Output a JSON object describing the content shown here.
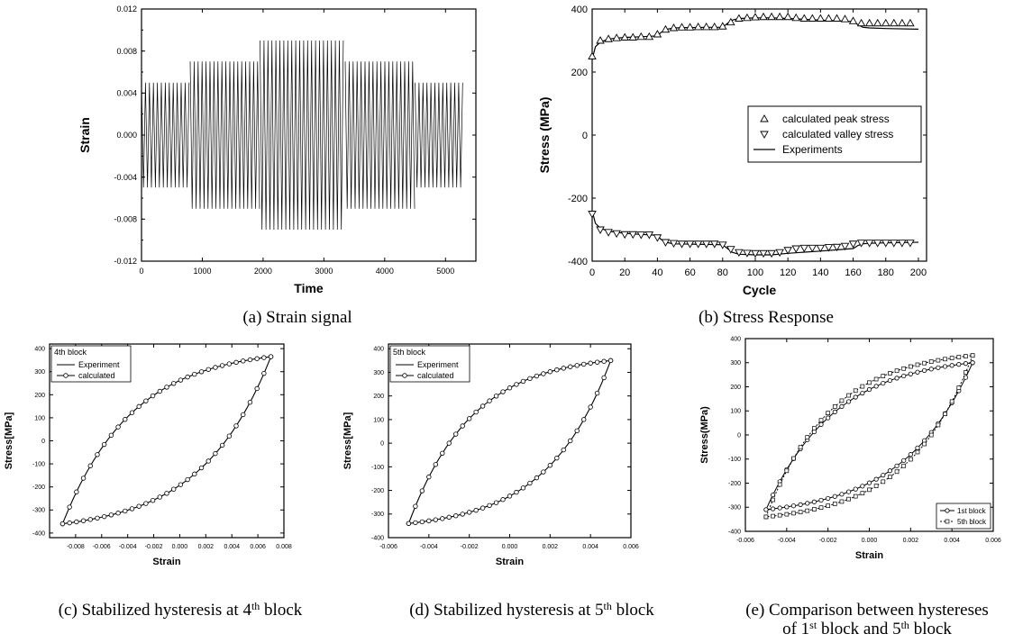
{
  "chart_data": [
    {
      "id": "a",
      "type": "line",
      "title": "",
      "caption": {
        "prefix": "(a) Strain signal"
      },
      "xlabel": "Time",
      "ylabel": "Strain",
      "xlim": [
        0,
        5500
      ],
      "ylim": [
        -0.012,
        0.012
      ],
      "xticks": [
        0,
        1000,
        2000,
        3000,
        4000,
        5000
      ],
      "xtick_labels": [
        "0",
        "1000",
        "2000",
        "3000",
        "4000",
        "5000"
      ],
      "yticks": [
        -0.012,
        -0.008,
        -0.004,
        0.0,
        0.004,
        0.008,
        0.012
      ],
      "ytick_labels": [
        "-0.012",
        "-0.008",
        "-0.004",
        "0.000",
        "0.004",
        "0.008",
        "0.012"
      ],
      "blocks": [
        {
          "start": 0,
          "end": 800,
          "amplitude": 0.005
        },
        {
          "start": 800,
          "end": 1950,
          "amplitude": 0.007
        },
        {
          "start": 1950,
          "end": 3350,
          "amplitude": 0.009
        },
        {
          "start": 3350,
          "end": 4500,
          "amplitude": 0.007
        },
        {
          "start": 4500,
          "end": 5300,
          "amplitude": 0.005
        }
      ]
    },
    {
      "id": "b",
      "type": "scatter",
      "title": "",
      "caption": {
        "prefix": "(b) Stress Response"
      },
      "xlabel": "Cycle",
      "ylabel": "Stress (MPa)",
      "xlim": [
        0,
        205
      ],
      "ylim": [
        -400,
        400
      ],
      "xticks": [
        0,
        20,
        40,
        60,
        80,
        100,
        120,
        140,
        160,
        180,
        200
      ],
      "xtick_labels": [
        "0",
        "20",
        "40",
        "60",
        "80",
        "100",
        "120",
        "140",
        "160",
        "180",
        "200"
      ],
      "yticks": [
        -400,
        -200,
        0,
        200,
        400
      ],
      "ytick_labels": [
        "-400",
        "-200",
        "0",
        "200",
        "400"
      ],
      "legend": "right",
      "series": [
        {
          "name": "calculated peak stress",
          "marker": "triangle-up",
          "x": [
            0,
            5,
            10,
            15,
            20,
            25,
            30,
            35,
            40,
            45,
            50,
            55,
            60,
            65,
            70,
            75,
            80,
            85,
            90,
            95,
            100,
            105,
            110,
            115,
            120,
            125,
            130,
            135,
            140,
            145,
            150,
            155,
            160,
            165,
            170,
            175,
            180,
            185,
            190,
            195
          ],
          "y": [
            250,
            300,
            305,
            308,
            310,
            310,
            312,
            312,
            320,
            335,
            340,
            342,
            342,
            343,
            343,
            343,
            345,
            358,
            370,
            372,
            374,
            375,
            375,
            375,
            375,
            372,
            370,
            370,
            370,
            370,
            370,
            368,
            362,
            355,
            355,
            355,
            355,
            355,
            355,
            355
          ]
        },
        {
          "name": "calculated valley stress",
          "marker": "triangle-down",
          "x": [
            0,
            5,
            10,
            15,
            20,
            25,
            30,
            35,
            40,
            45,
            50,
            55,
            60,
            65,
            70,
            75,
            80,
            85,
            90,
            95,
            100,
            105,
            110,
            115,
            120,
            125,
            130,
            135,
            140,
            145,
            150,
            155,
            160,
            165,
            170,
            175,
            180,
            185,
            190,
            195
          ],
          "y": [
            -250,
            -300,
            -308,
            -312,
            -315,
            -315,
            -316,
            -316,
            -325,
            -340,
            -343,
            -345,
            -345,
            -345,
            -345,
            -345,
            -348,
            -362,
            -372,
            -374,
            -375,
            -375,
            -375,
            -372,
            -365,
            -360,
            -358,
            -358,
            -358,
            -356,
            -355,
            -352,
            -345,
            -342,
            -342,
            -342,
            -342,
            -342,
            -342,
            -342
          ]
        },
        {
          "name": "Experiments",
          "style": "line",
          "x": [
            0,
            2,
            5,
            10,
            20,
            30,
            40,
            42,
            45,
            50,
            60,
            70,
            80,
            83,
            86,
            90,
            100,
            110,
            120,
            140,
            160,
            163,
            166,
            170,
            180,
            200
          ],
          "y": [
            240,
            280,
            295,
            305,
            310,
            312,
            315,
            325,
            335,
            340,
            341,
            342,
            342,
            355,
            365,
            370,
            372,
            372,
            370,
            365,
            360,
            350,
            342,
            340,
            338,
            336
          ]
        },
        {
          "name": "",
          "style": "line",
          "x": [
            0,
            2,
            5,
            10,
            20,
            30,
            40,
            42,
            45,
            50,
            60,
            70,
            80,
            83,
            86,
            90,
            100,
            110,
            120,
            140,
            160,
            163,
            166,
            170,
            180,
            200
          ],
          "y": [
            -240,
            -280,
            -295,
            -305,
            -312,
            -315,
            -318,
            -330,
            -340,
            -345,
            -346,
            -347,
            -348,
            -360,
            -372,
            -378,
            -380,
            -380,
            -375,
            -368,
            -360,
            -350,
            -345,
            -343,
            -342,
            -340
          ]
        }
      ]
    },
    {
      "id": "c",
      "type": "line",
      "title": "",
      "caption": {
        "prefix": "(c) Stabilized hysteresis at 4",
        "sup": "th",
        "suffix": " block"
      },
      "xlabel": "Strain",
      "ylabel": "Stress[MPa]",
      "xlim": [
        -0.01,
        0.008
      ],
      "ylim": [
        -420,
        420
      ],
      "xticks": [
        -0.008,
        -0.006,
        -0.004,
        -0.002,
        0.0,
        0.002,
        0.004,
        0.006,
        0.008
      ],
      "xtick_labels": [
        "-0.008",
        "-0.006",
        "-0.004",
        "-0.002",
        "0.000",
        "0.002",
        "0.004",
        "0.006",
        "0.008"
      ],
      "yticks": [
        -400,
        -300,
        -200,
        -100,
        0,
        100,
        200,
        300,
        400
      ],
      "ytick_labels": [
        "-400",
        "-300",
        "-200",
        "-100",
        "0",
        "100",
        "200",
        "300",
        "400"
      ],
      "legend": "top-left",
      "legend_title": "4th block",
      "loop": {
        "emin": -0.009,
        "emax": 0.007,
        "smin": -360,
        "smax": 365,
        "k": 3.0
      },
      "series": [
        {
          "name": "Experiment",
          "style": "line"
        },
        {
          "name": "calculated",
          "style": "line+circle"
        }
      ]
    },
    {
      "id": "d",
      "type": "line",
      "title": "",
      "caption": {
        "prefix": "(d) Stabilized hysteresis at 5",
        "sup": "th",
        "suffix": " block"
      },
      "xlabel": "Strain",
      "ylabel": "Stress[MPa]",
      "xlim": [
        -0.006,
        0.006
      ],
      "ylim": [
        -400,
        420
      ],
      "xticks": [
        -0.006,
        -0.004,
        -0.002,
        0.0,
        0.002,
        0.004,
        0.006
      ],
      "xtick_labels": [
        "-0.006",
        "-0.004",
        "-0.002",
        "0.000",
        "0.002",
        "0.004",
        "0.006"
      ],
      "yticks": [
        -400,
        -300,
        -200,
        -100,
        0,
        100,
        200,
        300,
        400
      ],
      "ytick_labels": [
        "-400",
        "-300",
        "-200",
        "-100",
        "0",
        "100",
        "200",
        "300",
        "400"
      ],
      "legend": "top-left",
      "legend_title": "5th block",
      "loop": {
        "emin": -0.005,
        "emax": 0.005,
        "smin": -340,
        "smax": 350,
        "k": 3.2
      },
      "series": [
        {
          "name": "Experiment",
          "style": "line"
        },
        {
          "name": "calculated",
          "style": "line+circle"
        }
      ]
    },
    {
      "id": "e",
      "type": "line",
      "title": "",
      "caption": {
        "prefix": "(e) Comparison between hystereses",
        "line2_prefix": "of 1",
        "line2_sup1": "st",
        "line2_mid": " block and 5",
        "line2_sup2": "th",
        "line2_suffix": " block"
      },
      "xlabel": "Strain",
      "ylabel": "Stress(MPa)",
      "xlim": [
        -0.006,
        0.006
      ],
      "ylim": [
        -400,
        400
      ],
      "xticks": [
        -0.006,
        -0.004,
        -0.002,
        0.0,
        0.002,
        0.004,
        0.006
      ],
      "xtick_labels": [
        "-0.006",
        "-0.004",
        "-0.002",
        "0.000",
        "0.002",
        "0.004",
        "0.006"
      ],
      "yticks": [
        -400,
        -300,
        -200,
        -100,
        0,
        100,
        200,
        300,
        400
      ],
      "ytick_labels": [
        "-400",
        "-300",
        "-200",
        "-100",
        "0",
        "100",
        "200",
        "300",
        "400"
      ],
      "legend": "bottom-right",
      "series": [
        {
          "name": "1st block",
          "style": "line+circle",
          "loop": {
            "emin": -0.005,
            "emax": 0.005,
            "smin": -310,
            "smax": 300,
            "k": 3.0
          }
        },
        {
          "name": "5th block",
          "style": "dotted+square",
          "loop": {
            "emin": -0.005,
            "emax": 0.005,
            "smin": -340,
            "smax": 330,
            "k": 3.2
          }
        }
      ]
    }
  ]
}
